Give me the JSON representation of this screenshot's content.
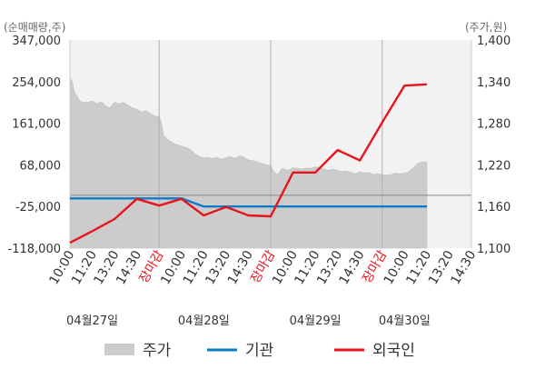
{
  "chart_data": {
    "type": "line",
    "left_axis_unit": "(순매매량,주)",
    "right_axis_unit": "(주가,원)",
    "left_axis": {
      "range": [
        -118000,
        347000
      ],
      "ticks": [
        "347,000",
        "254,000",
        "161,000",
        "68,000",
        "-25,000",
        "-118,000"
      ],
      "tick_values": [
        347000,
        254000,
        161000,
        68000,
        -25000,
        -118000
      ]
    },
    "right_axis": {
      "range": [
        1100,
        1400
      ],
      "ticks": [
        "1,400",
        "1,340",
        "1,280",
        "1,220",
        "1,160",
        "1,100"
      ],
      "tick_values": [
        1400,
        1340,
        1280,
        1220,
        1160,
        1100
      ]
    },
    "x_ticks": [
      {
        "label": "10:00",
        "red": false
      },
      {
        "label": "11:20",
        "red": false
      },
      {
        "label": "13:20",
        "red": false
      },
      {
        "label": "14:30",
        "red": false
      },
      {
        "label": "장마감",
        "red": true
      },
      {
        "label": "10:00",
        "red": false
      },
      {
        "label": "11:20",
        "red": false
      },
      {
        "label": "13:20",
        "red": false
      },
      {
        "label": "14:30",
        "red": false
      },
      {
        "label": "장마감",
        "red": true
      },
      {
        "label": "10:00",
        "red": false
      },
      {
        "label": "11:20",
        "red": false
      },
      {
        "label": "13:20",
        "red": false
      },
      {
        "label": "14:30",
        "red": false
      },
      {
        "label": "장마감",
        "red": true
      },
      {
        "label": "10:00",
        "red": false
      },
      {
        "label": "11:20",
        "red": false
      },
      {
        "label": "13:20",
        "red": false
      },
      {
        "label": "14:30",
        "red": false
      }
    ],
    "dates": [
      {
        "label": "04월27일",
        "tick_index": 1
      },
      {
        "label": "04월28일",
        "tick_index": 6
      },
      {
        "label": "04월29일",
        "tick_index": 11
      },
      {
        "label": "04월30일",
        "tick_index": 15
      }
    ],
    "price": {
      "name": "주가",
      "color": "#cccccc",
      "x": [
        0,
        0.1,
        0.2,
        0.3,
        0.45,
        0.6,
        0.8,
        1,
        1.2,
        1.4,
        1.6,
        1.8,
        2,
        2.2,
        2.4,
        2.6,
        2.8,
        3,
        3.2,
        3.4,
        3.6,
        3.8,
        4,
        4.1,
        4.2,
        4.4,
        4.6,
        4.8,
        5,
        5.2,
        5.4,
        5.6,
        5.8,
        6,
        6.2,
        6.4,
        6.6,
        6.8,
        7,
        7.2,
        7.4,
        7.6,
        7.8,
        8,
        8.2,
        8.4,
        8.6,
        8.8,
        9,
        9.1,
        9.2,
        9.3,
        9.4,
        9.5,
        9.6,
        9.8,
        10,
        10.2,
        10.4,
        10.6,
        10.8,
        11,
        11.2,
        11.4,
        11.6,
        11.8,
        12,
        12.2,
        12.4,
        12.6,
        12.8,
        13,
        13.2,
        13.4,
        13.6,
        13.8,
        14,
        14.2,
        14.4,
        14.6,
        14.8,
        15,
        15.2,
        15.4,
        15.6,
        15.8,
        16
      ],
      "values": [
        1345,
        1340,
        1325,
        1320,
        1312,
        1310,
        1310,
        1312,
        1308,
        1311,
        1305,
        1302,
        1310,
        1308,
        1310,
        1306,
        1302,
        1300,
        1296,
        1298,
        1294,
        1290,
        1290,
        1280,
        1262,
        1256,
        1252,
        1249,
        1247,
        1245,
        1242,
        1236,
        1232,
        1230,
        1231,
        1229,
        1231,
        1228,
        1230,
        1232,
        1229,
        1233,
        1231,
        1227,
        1226,
        1224,
        1222,
        1220,
        1219,
        1212,
        1208,
        1206,
        1210,
        1215,
        1214,
        1212,
        1216,
        1215,
        1214,
        1215,
        1215,
        1217,
        1216,
        1214,
        1212,
        1214,
        1212,
        1210,
        1211,
        1209,
        1207,
        1210,
        1208,
        1209,
        1206,
        1207,
        1206,
        1205,
        1206,
        1208,
        1207,
        1208,
        1210,
        1216,
        1222,
        1224,
        1224
      ]
    },
    "series": [
      {
        "name": "기관",
        "color": "#0a7bc9",
        "x": [
          0,
          1,
          2,
          3,
          4,
          5,
          6,
          7,
          8,
          9,
          10,
          11,
          12,
          13,
          14,
          15,
          16
        ],
        "values": [
          -7000,
          -7000,
          -7000,
          -7000,
          -7000,
          -7000,
          -25000,
          -25000,
          -25000,
          -25000,
          -25000,
          -25000,
          -25000,
          -25000,
          -25000,
          -25000,
          -25000
        ]
      },
      {
        "name": "외국인",
        "color": "#e8141d",
        "x": [
          0,
          1,
          2,
          3,
          4,
          5,
          6,
          7,
          8,
          9,
          10,
          11,
          12,
          13,
          14,
          15,
          16
        ],
        "values": [
          -106000,
          -80000,
          -53000,
          -8000,
          -23000,
          -8000,
          -45000,
          -26000,
          -45000,
          -47000,
          51000,
          51000,
          101000,
          78000,
          163000,
          245000,
          248000
        ]
      }
    ]
  },
  "legend": [
    {
      "label": "주가",
      "color": "#cccccc",
      "kind": "area"
    },
    {
      "label": "기관",
      "color": "#0a7bc9",
      "kind": "line"
    },
    {
      "label": "외국인",
      "color": "#e8141d",
      "kind": "line"
    }
  ]
}
